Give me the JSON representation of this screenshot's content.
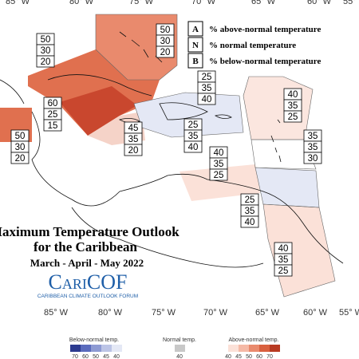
{
  "title": {
    "line1": "Maximum Temperature Outlook",
    "line2": "for the Caribbean",
    "period": "March - April - May 2022"
  },
  "logo": {
    "name": "CariCOF",
    "subtitle": "CARIBBEAN CLIMATE OUTLOOK FORUM"
  },
  "key": [
    {
      "letter": "A",
      "text": "% above-normal temperature"
    },
    {
      "letter": "N",
      "text": "% normal temperature"
    },
    {
      "letter": "B",
      "text": "% below-normal temperature"
    }
  ],
  "longitudes_top": [
    "85° W",
    "80° W",
    "75° W",
    "70° W",
    "65° W",
    "60° W",
    "55° W"
  ],
  "longitudes_bottom": [
    "85° W",
    "80° W",
    "75° W",
    "70° W",
    "65° W",
    "60° W",
    "55° W"
  ],
  "regions": [
    {
      "above": 50,
      "normal": 30,
      "below": 20
    },
    {
      "above": 50,
      "normal": 30,
      "below": 20
    },
    {
      "above": 60,
      "normal": 25,
      "below": 15
    },
    {
      "above": 50,
      "normal": 30,
      "below": 20
    },
    {
      "above": 45,
      "normal": 35,
      "below": 20
    },
    {
      "above": 25,
      "normal": 35,
      "below": 40
    },
    {
      "above": 25,
      "normal": 35,
      "below": 40
    },
    {
      "above": 40,
      "normal": 35,
      "below": 25
    },
    {
      "above": 35,
      "normal": 35,
      "below": 30
    },
    {
      "above": 40,
      "normal": 35,
      "below": 25
    },
    {
      "above": 25,
      "normal": 35,
      "below": 40
    },
    {
      "above": 40,
      "normal": 35,
      "below": 25
    }
  ],
  "colorbar": {
    "below": {
      "label": "Below-normal temp.",
      "ticks": [
        70,
        60,
        50,
        45,
        40
      ]
    },
    "normal": {
      "label": "Normal temp.",
      "ticks": [
        40
      ]
    },
    "above": {
      "label": "Above-normal temp.",
      "ticks": [
        40,
        45,
        50,
        60,
        70
      ]
    }
  }
}
